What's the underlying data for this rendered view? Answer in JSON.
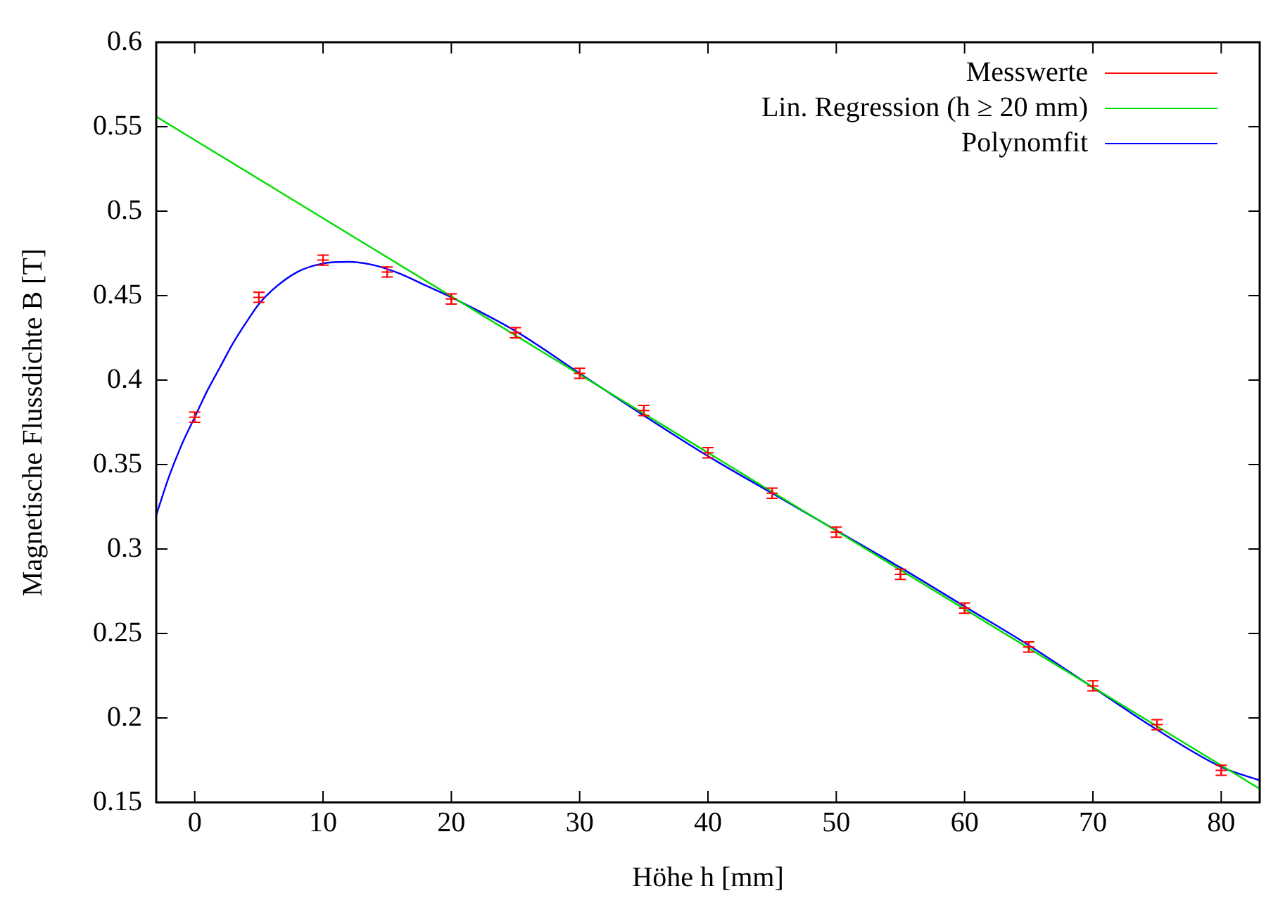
{
  "chart_data": {
    "type": "scatter",
    "xlabel": "Höhe h [mm]",
    "ylabel": "Magnetische Flussdichte B [T]",
    "xlim": [
      -3,
      83
    ],
    "xticks": [
      0,
      10,
      20,
      30,
      40,
      50,
      60,
      70,
      80
    ],
    "ylim": [
      0.15,
      0.6
    ],
    "yticks": [
      0.15,
      0.2,
      0.25,
      0.3,
      0.35,
      0.4,
      0.45,
      0.5,
      0.55,
      0.6
    ],
    "grid": false,
    "legend": "top right",
    "line_style": "solid",
    "series": [
      {
        "name": "Messwerte",
        "marker": "cross",
        "color": "#ff0000",
        "x": [
          0,
          5,
          10,
          15,
          20,
          25,
          30,
          35,
          40,
          45,
          50,
          55,
          60,
          65,
          70,
          75,
          80
        ],
        "values": [
          0.378,
          0.449,
          0.471,
          0.464,
          0.448,
          0.428,
          0.404,
          0.382,
          0.357,
          0.333,
          0.31,
          0.285,
          0.265,
          0.242,
          0.219,
          0.196,
          0.169
        ],
        "errors": [
          0.003,
          0.003,
          0.003,
          0.003,
          0.003,
          0.003,
          0.003,
          0.003,
          0.003,
          0.003,
          0.003,
          0.003,
          0.003,
          0.003,
          0.003,
          0.003,
          0.003
        ]
      },
      {
        "name": "Lin. Regression (h ≥ 20 mm)",
        "type": "line",
        "color": "#00dd00",
        "marker": "none",
        "x": [
          -3,
          83
        ],
        "values": [
          0.556,
          0.158
        ]
      },
      {
        "name": "Polynomfit",
        "type": "line",
        "marker": "none",
        "color": "#0000ff",
        "x": [
          -3,
          -2,
          -1,
          0,
          1,
          2,
          3,
          4,
          5,
          6,
          8,
          10,
          12,
          14,
          16,
          18,
          20,
          25,
          30,
          35,
          40,
          45,
          50,
          55,
          60,
          65,
          70,
          75,
          80,
          83
        ],
        "values": [
          0.32,
          0.343,
          0.362,
          0.378,
          0.394,
          0.408,
          0.422,
          0.434,
          0.445,
          0.453,
          0.464,
          0.469,
          0.47,
          0.468,
          0.463,
          0.456,
          0.449,
          0.429,
          0.404,
          0.379,
          0.355,
          0.333,
          0.311,
          0.289,
          0.266,
          0.243,
          0.218,
          0.193,
          0.171,
          0.163
        ]
      }
    ]
  }
}
